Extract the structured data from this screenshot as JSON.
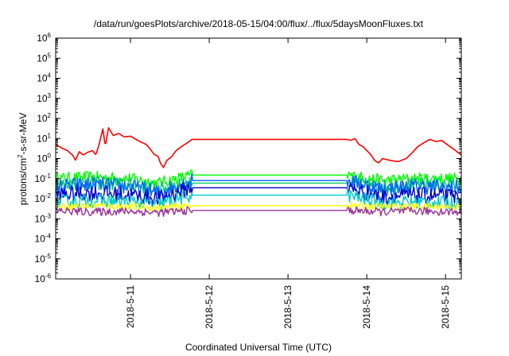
{
  "chart_data": {
    "type": "line",
    "title": "/data/run/goesPlots/archive/2018-05-15/04:00/flux/../flux/5daysMoonFluxes.txt",
    "xlabel": "Coordinated Universal Time (UTC)",
    "ylabel_parts": [
      "protons/cm",
      "2",
      "-s-sr-MeV"
    ],
    "y_scale": "log",
    "ylim_exp": [
      -6,
      6
    ],
    "y_tick_exponents": [
      -6,
      -5,
      -4,
      -3,
      -2,
      -1,
      0,
      1,
      2,
      3,
      4,
      5,
      6
    ],
    "y_tick_base": "10",
    "xlim_days": [
      10.05,
      15.2
    ],
    "x_ticks": [
      {
        "label": "2018-5-11",
        "day": 11
      },
      {
        "label": "2018-5-12",
        "day": 12
      },
      {
        "label": "2018-5-13",
        "day": 13
      },
      {
        "label": "2018-5-14",
        "day": 14
      },
      {
        "label": "2018-5-15",
        "day": 15
      }
    ],
    "gap": [
      11.78,
      13.75
    ],
    "grid": false,
    "legend": "none",
    "series": [
      {
        "color": "#ff0000",
        "gap_value": 9,
        "wiggle": 0,
        "points": [
          [
            10.05,
            5
          ],
          [
            10.15,
            3
          ],
          [
            10.2,
            2.5
          ],
          [
            10.27,
            1.4
          ],
          [
            10.3,
            0.8
          ],
          [
            10.35,
            2.2
          ],
          [
            10.4,
            1.5
          ],
          [
            10.45,
            2
          ],
          [
            10.52,
            2.5
          ],
          [
            10.56,
            1.5
          ],
          [
            10.6,
            5
          ],
          [
            10.65,
            30
          ],
          [
            10.68,
            4
          ],
          [
            10.72,
            35
          ],
          [
            10.78,
            14
          ],
          [
            10.85,
            18
          ],
          [
            10.92,
            12
          ],
          [
            11.0,
            13
          ],
          [
            11.05,
            10
          ],
          [
            11.12,
            7
          ],
          [
            11.2,
            5
          ],
          [
            11.25,
            3
          ],
          [
            11.3,
            1.6
          ],
          [
            11.35,
            1.3
          ],
          [
            11.38,
            0.6
          ],
          [
            11.42,
            0.35
          ],
          [
            11.46,
            0.8
          ],
          [
            11.52,
            1.2
          ],
          [
            11.58,
            2.5
          ],
          [
            11.65,
            4
          ],
          [
            11.72,
            6
          ],
          [
            11.78,
            9
          ],
          [
            13.75,
            9
          ],
          [
            13.8,
            8
          ],
          [
            13.85,
            10
          ],
          [
            13.9,
            5
          ],
          [
            13.95,
            4
          ],
          [
            14.0,
            2.5
          ],
          [
            14.05,
            1.6
          ],
          [
            14.1,
            0.8
          ],
          [
            14.15,
            0.6
          ],
          [
            14.2,
            1
          ],
          [
            14.3,
            0.8
          ],
          [
            14.4,
            0.7
          ],
          [
            14.5,
            1
          ],
          [
            14.58,
            2
          ],
          [
            14.65,
            4
          ],
          [
            14.72,
            6
          ],
          [
            14.8,
            9
          ],
          [
            14.88,
            7
          ],
          [
            14.95,
            8
          ],
          [
            15.02,
            5
          ],
          [
            15.1,
            3
          ],
          [
            15.2,
            1.5
          ]
        ]
      },
      {
        "color": "#00ff00",
        "gap_value": 0.15,
        "wiggle": 0.6,
        "points": [
          [
            10.05,
            0.1
          ],
          [
            10.5,
            0.12
          ],
          [
            11.0,
            0.1
          ],
          [
            11.35,
            0.06
          ],
          [
            11.78,
            0.15
          ],
          [
            13.75,
            0.15
          ],
          [
            14.2,
            0.08
          ],
          [
            14.6,
            0.1
          ],
          [
            15.2,
            0.1
          ]
        ]
      },
      {
        "color": "#00cc66",
        "gap_value": 0.06,
        "wiggle": 0.7,
        "points": [
          [
            10.05,
            0.05
          ],
          [
            10.5,
            0.06
          ],
          [
            11.0,
            0.05
          ],
          [
            11.35,
            0.03
          ],
          [
            11.78,
            0.06
          ],
          [
            13.75,
            0.06
          ],
          [
            14.2,
            0.04
          ],
          [
            14.6,
            0.05
          ],
          [
            15.2,
            0.05
          ]
        ]
      },
      {
        "color": "#0066ff",
        "gap_value": 0.08,
        "wiggle": 0.8,
        "points": [
          [
            10.05,
            0.04
          ],
          [
            10.5,
            0.05
          ],
          [
            11.0,
            0.04
          ],
          [
            11.35,
            0.02
          ],
          [
            11.78,
            0.08
          ],
          [
            13.75,
            0.08
          ],
          [
            14.2,
            0.03
          ],
          [
            14.6,
            0.04
          ],
          [
            15.2,
            0.035
          ]
        ]
      },
      {
        "color": "#0000cc",
        "gap_value": 0.035,
        "wiggle": 0.8,
        "points": [
          [
            10.05,
            0.015
          ],
          [
            10.5,
            0.02
          ],
          [
            11.0,
            0.015
          ],
          [
            11.35,
            0.01
          ],
          [
            11.78,
            0.035
          ],
          [
            13.75,
            0.035
          ],
          [
            14.2,
            0.012
          ],
          [
            14.6,
            0.015
          ],
          [
            15.2,
            0.012
          ]
        ]
      },
      {
        "color": "#00cccc",
        "gap_value": 0.015,
        "wiggle": 0.7,
        "points": [
          [
            10.05,
            0.007
          ],
          [
            10.5,
            0.008
          ],
          [
            11.0,
            0.007
          ],
          [
            11.35,
            0.005
          ],
          [
            11.78,
            0.015
          ],
          [
            13.75,
            0.015
          ],
          [
            14.2,
            0.006
          ],
          [
            14.6,
            0.007
          ],
          [
            15.2,
            0.006
          ]
        ]
      },
      {
        "color": "#ffff00",
        "gap_value": 0.0045,
        "wiggle": 0.35,
        "points": [
          [
            10.05,
            0.004
          ],
          [
            10.5,
            0.0045
          ],
          [
            11.0,
            0.004
          ],
          [
            11.35,
            0.0035
          ],
          [
            11.78,
            0.0045
          ],
          [
            13.75,
            0.0045
          ],
          [
            14.2,
            0.004
          ],
          [
            14.6,
            0.004
          ],
          [
            15.2,
            0.004
          ]
        ]
      },
      {
        "color": "#993399",
        "gap_value": 0.0026,
        "wiggle": 0.4,
        "points": [
          [
            10.05,
            0.0025
          ],
          [
            10.5,
            0.0022
          ],
          [
            11.0,
            0.0024
          ],
          [
            11.35,
            0.002
          ],
          [
            11.78,
            0.0026
          ],
          [
            13.75,
            0.0026
          ],
          [
            14.2,
            0.0022
          ],
          [
            14.6,
            0.0024
          ],
          [
            15.2,
            0.0022
          ]
        ]
      }
    ]
  }
}
